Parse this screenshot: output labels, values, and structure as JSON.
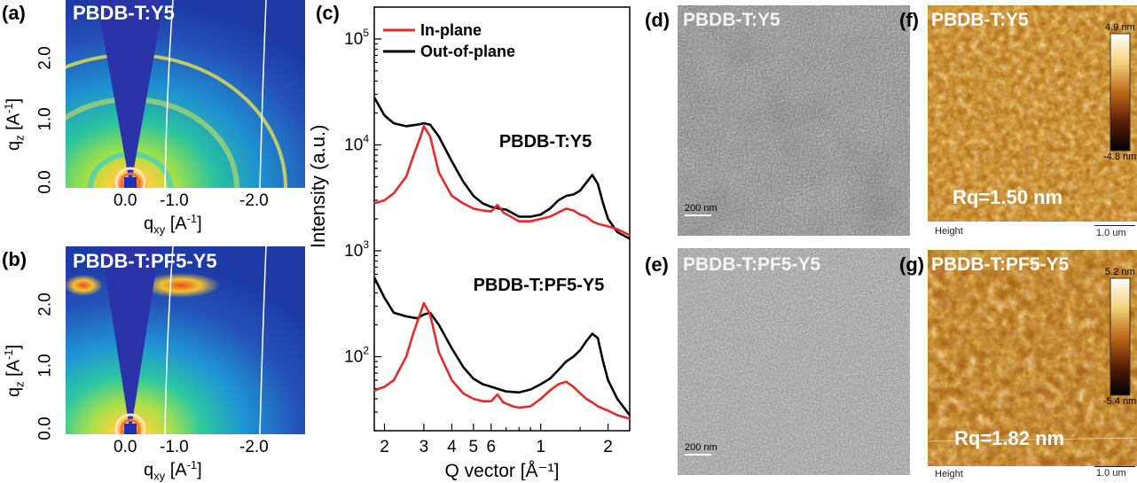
{
  "panels": {
    "a": {
      "label": "(a)",
      "title": "PBDB-T:Y5"
    },
    "b": {
      "label": "(b)",
      "title": "PBDB-T:PF5-Y5"
    },
    "c": {
      "label": "(c)"
    },
    "d": {
      "label": "(d)",
      "title": "PBDB-T:Y5",
      "scalebar": "200 nm"
    },
    "e": {
      "label": "(e)",
      "title": "PBDB-T:PF5-Y5",
      "scalebar": "200 nm"
    },
    "f": {
      "label": "(f)",
      "title": "PBDB-T:Y5",
      "colorbar_max": "4.9 nm",
      "colorbar_min": "-4.8 nm",
      "rq": "Rq=1.50 nm",
      "channel": "Height",
      "scalebar": "1.0 um"
    },
    "g": {
      "label": "(g)",
      "title": "PBDB-T:PF5-Y5",
      "colorbar_max": "5.2 nm",
      "colorbar_min": "-5.4 nm",
      "rq": "Rq=1.82 nm",
      "channel": "Height",
      "scalebar": "1.0 um"
    }
  },
  "giwaxs_axes": {
    "qz_label": "q",
    "qz_sub": "z",
    "qz_unit": "[A",
    "qz_sup": "-1",
    "qz_close": "]",
    "qxy_label": "q",
    "qxy_sub": "xy",
    "qxy_unit": "[A",
    "qxy_sup": "-1",
    "qxy_close": "]",
    "qz_ticks": [
      "0.0",
      "1.0",
      "2.0"
    ],
    "qxy_ticks": [
      "0.0",
      "-1.0",
      "-2.0"
    ]
  },
  "colors": {
    "in_plane": "#e8282b",
    "out_of_plane": "#000000",
    "giwaxs_bg": "#1d3aa5"
  },
  "chart_data": {
    "type": "line",
    "xlabel": "Q vector [Å⁻¹]",
    "ylabel": "Intensity (a.u.)",
    "xscale": "log",
    "yscale": "log",
    "xlim": [
      0.18,
      2.5
    ],
    "ylim": [
      20,
      200000
    ],
    "legend": {
      "position": "top-left",
      "entries": [
        "In-plane",
        "Out-of-plane"
      ]
    },
    "x_tick_labels": [
      "2",
      "3",
      "4",
      "5",
      "6",
      "1",
      "2"
    ],
    "y_tick_labels": [
      "10^2",
      "10^3",
      "10^4",
      "10^5"
    ],
    "annotations": [
      "PBDB-T:Y5",
      "PBDB-T:PF5-Y5"
    ],
    "groups": [
      {
        "label": "PBDB-T:Y5",
        "series": [
          {
            "name": "Out-of-plane",
            "x": [
              0.18,
              0.2,
              0.22,
              0.25,
              0.28,
              0.3,
              0.32,
              0.35,
              0.4,
              0.45,
              0.5,
              0.55,
              0.6,
              0.65,
              0.7,
              0.8,
              0.9,
              1.0,
              1.1,
              1.2,
              1.3,
              1.4,
              1.5,
              1.6,
              1.7,
              1.8,
              1.9,
              2.0,
              2.2,
              2.5
            ],
            "y": [
              28000,
              19000,
              16000,
              15000,
              15500,
              16000,
              15500,
              12000,
              7000,
              4500,
              3300,
              2800,
              2600,
              2500,
              2450,
              2100,
              2100,
              2200,
              2500,
              3000,
              3300,
              3400,
              3700,
              4400,
              5200,
              4300,
              2800,
              2000,
              1500,
              1300
            ]
          },
          {
            "name": "In-plane",
            "x": [
              0.18,
              0.2,
              0.22,
              0.25,
              0.27,
              0.29,
              0.3,
              0.32,
              0.35,
              0.4,
              0.45,
              0.5,
              0.55,
              0.6,
              0.64,
              0.68,
              0.75,
              0.8,
              0.9,
              1.0,
              1.1,
              1.2,
              1.3,
              1.4,
              1.5,
              1.6,
              1.7,
              1.8,
              2.0,
              2.2,
              2.5
            ],
            "y": [
              2800,
              3000,
              3500,
              5000,
              8000,
              12000,
              15000,
              12000,
              5500,
              3300,
              2800,
              2500,
              2400,
              2350,
              2700,
              2300,
              2050,
              1900,
              1900,
              2000,
              2100,
              2300,
              2500,
              2400,
              2200,
              2100,
              1900,
              1800,
              1700,
              1600,
              1400
            ]
          }
        ]
      },
      {
        "label": "PBDB-T:PF5-Y5",
        "series": [
          {
            "name": "Out-of-plane",
            "x": [
              0.18,
              0.2,
              0.22,
              0.25,
              0.28,
              0.3,
              0.32,
              0.35,
              0.4,
              0.45,
              0.5,
              0.55,
              0.6,
              0.7,
              0.8,
              0.9,
              1.0,
              1.1,
              1.2,
              1.3,
              1.4,
              1.5,
              1.6,
              1.7,
              1.8,
              1.9,
              2.0,
              2.2,
              2.5
            ],
            "y": [
              560,
              360,
              260,
              240,
              230,
              250,
              260,
              200,
              120,
              80,
              62,
              55,
              52,
              47,
              46,
              49,
              55,
              62,
              75,
              90,
              100,
              115,
              140,
              165,
              150,
              90,
              60,
              40,
              28
            ]
          },
          {
            "name": "In-plane",
            "x": [
              0.18,
              0.2,
              0.22,
              0.25,
              0.27,
              0.29,
              0.3,
              0.32,
              0.35,
              0.4,
              0.45,
              0.5,
              0.55,
              0.6,
              0.64,
              0.68,
              0.75,
              0.8,
              0.9,
              1.0,
              1.1,
              1.2,
              1.3,
              1.4,
              1.5,
              1.6,
              1.7,
              1.8,
              2.0,
              2.2,
              2.5
            ],
            "y": [
              48,
              52,
              60,
              100,
              170,
              260,
              320,
              250,
              110,
              60,
              45,
              40,
              38,
              38,
              44,
              37,
              34,
              33,
              34,
              40,
              48,
              55,
              58,
              52,
              45,
              40,
              37,
              34,
              31,
              28,
              26
            ]
          }
        ]
      }
    ]
  }
}
